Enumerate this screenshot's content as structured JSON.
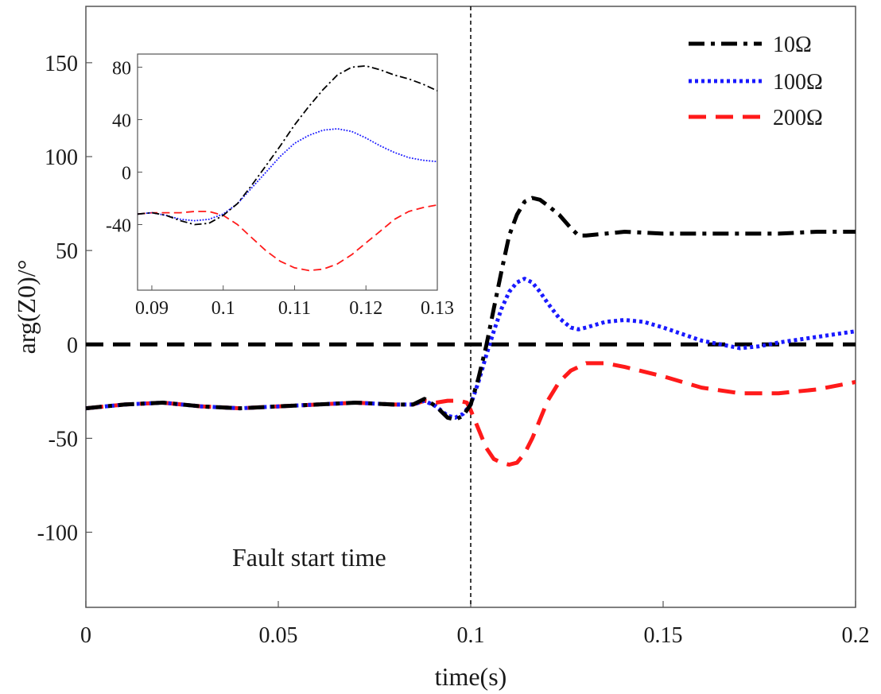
{
  "chart_data": [
    {
      "type": "line",
      "title": "",
      "xlabel": "time(s)",
      "ylabel": "arg(Z0)/°",
      "xlim": [
        0,
        0.2
      ],
      "ylim": [
        -140,
        180
      ],
      "xticks": [
        0,
        0.05,
        0.1,
        0.15,
        0.2
      ],
      "xtick_labels": [
        "0",
        "0.05",
        "0.1",
        "0.15",
        "0.2"
      ],
      "yticks": [
        -100,
        -50,
        0,
        50,
        100,
        150
      ],
      "ytick_labels": [
        "-100",
        "-50",
        "0",
        "50",
        "100",
        "150"
      ],
      "legend_position": "top-right",
      "series": [
        {
          "name": "10Ω",
          "color": "#000000",
          "dash": "dashdot",
          "x": [
            0,
            0.01,
            0.02,
            0.03,
            0.04,
            0.05,
            0.06,
            0.07,
            0.08,
            0.085,
            0.088,
            0.091,
            0.094,
            0.096,
            0.098,
            0.1,
            0.102,
            0.104,
            0.106,
            0.108,
            0.11,
            0.112,
            0.114,
            0.116,
            0.118,
            0.12,
            0.123,
            0.126,
            0.128,
            0.13,
            0.135,
            0.14,
            0.15,
            0.16,
            0.17,
            0.18,
            0.19,
            0.2
          ],
          "y": [
            -34,
            -32,
            -31,
            -33,
            -34,
            -33,
            -32,
            -31,
            -32,
            -32,
            -29,
            -33,
            -39,
            -40,
            -38,
            -32,
            -18,
            -1,
            19,
            39,
            58,
            69,
            76,
            78,
            77,
            74,
            69,
            62,
            58,
            58,
            59,
            60,
            59,
            59,
            59,
            59,
            60,
            60
          ]
        },
        {
          "name": "100Ω",
          "color": "#1a1aff",
          "dash": "dotted",
          "x": [
            0,
            0.01,
            0.02,
            0.03,
            0.04,
            0.05,
            0.06,
            0.07,
            0.08,
            0.085,
            0.088,
            0.091,
            0.094,
            0.096,
            0.098,
            0.1,
            0.102,
            0.104,
            0.106,
            0.108,
            0.11,
            0.112,
            0.114,
            0.116,
            0.118,
            0.12,
            0.123,
            0.126,
            0.128,
            0.13,
            0.135,
            0.14,
            0.145,
            0.15,
            0.16,
            0.17,
            0.175,
            0.18,
            0.19,
            0.2
          ],
          "y": [
            -34,
            -32,
            -31,
            -33,
            -34,
            -33,
            -32,
            -31,
            -32,
            -32,
            -30,
            -33,
            -38,
            -39,
            -37,
            -32,
            -20,
            -6,
            7,
            19,
            28,
            33,
            35,
            33,
            28,
            22,
            14,
            9,
            8,
            9,
            12,
            13,
            12,
            9,
            2,
            -2,
            -1,
            1,
            4,
            7
          ]
        },
        {
          "name": "200Ω",
          "color": "#ff1a1a",
          "dash": "dashed",
          "x": [
            0,
            0.01,
            0.02,
            0.03,
            0.04,
            0.05,
            0.06,
            0.07,
            0.08,
            0.085,
            0.088,
            0.091,
            0.094,
            0.097,
            0.099,
            0.1,
            0.102,
            0.104,
            0.106,
            0.108,
            0.11,
            0.112,
            0.114,
            0.116,
            0.118,
            0.12,
            0.123,
            0.126,
            0.13,
            0.135,
            0.14,
            0.15,
            0.16,
            0.17,
            0.18,
            0.19,
            0.2
          ],
          "y": [
            -34,
            -32,
            -31,
            -33,
            -34,
            -33,
            -32,
            -31,
            -32,
            -32,
            -30,
            -31,
            -30,
            -30,
            -31,
            -35,
            -45,
            -55,
            -61,
            -63,
            -64,
            -63,
            -58,
            -50,
            -40,
            -30,
            -20,
            -14,
            -10,
            -10,
            -12,
            -17,
            -23,
            -26,
            -26,
            -24,
            -20
          ]
        },
        {
          "name": "reference-zero",
          "color": "#000000",
          "dash": "dashed",
          "x": [
            0,
            0.2
          ],
          "y": [
            0,
            0
          ]
        }
      ],
      "vertical_line": {
        "x": 0.1,
        "style": "dashed",
        "color": "#000000"
      },
      "annotation": "Fault start time"
    },
    {
      "type": "line",
      "title": "inset",
      "xlim": [
        0.088,
        0.13
      ],
      "ylim": [
        -90,
        90
      ],
      "xticks": [
        0.09,
        0.1,
        0.11,
        0.12,
        0.13
      ],
      "xtick_labels": [
        "0.09",
        "0.1",
        "0.11",
        "0.12",
        "0.13"
      ],
      "yticks": [
        -40,
        0,
        40,
        80
      ],
      "ytick_labels": [
        "-40",
        "0",
        "40",
        "80"
      ],
      "series": [
        {
          "name": "10Ω",
          "color": "#000000",
          "dash": "dashdot",
          "x": [
            0.088,
            0.09,
            0.092,
            0.094,
            0.096,
            0.098,
            0.1,
            0.102,
            0.104,
            0.106,
            0.108,
            0.11,
            0.112,
            0.114,
            0.116,
            0.118,
            0.12,
            0.122,
            0.124,
            0.126,
            0.128,
            0.13
          ],
          "y": [
            -32,
            -31,
            -33,
            -37,
            -40,
            -39,
            -33,
            -24,
            -10,
            5,
            20,
            36,
            50,
            63,
            74,
            80,
            81,
            78,
            74,
            71,
            67,
            62
          ]
        },
        {
          "name": "100Ω",
          "color": "#1a1aff",
          "dash": "dotted",
          "x": [
            0.088,
            0.09,
            0.092,
            0.094,
            0.096,
            0.098,
            0.1,
            0.102,
            0.104,
            0.106,
            0.108,
            0.11,
            0.112,
            0.114,
            0.116,
            0.118,
            0.12,
            0.122,
            0.124,
            0.126,
            0.128,
            0.13
          ],
          "y": [
            -32,
            -31,
            -33,
            -36,
            -37,
            -36,
            -32,
            -24,
            -12,
            0,
            12,
            22,
            28,
            32,
            33,
            31,
            26,
            20,
            15,
            11,
            9,
            8
          ]
        },
        {
          "name": "200Ω",
          "color": "#ff1a1a",
          "dash": "dashed",
          "x": [
            0.088,
            0.09,
            0.092,
            0.094,
            0.096,
            0.098,
            0.1,
            0.102,
            0.104,
            0.106,
            0.108,
            0.11,
            0.112,
            0.114,
            0.116,
            0.118,
            0.12,
            0.122,
            0.124,
            0.126,
            0.128,
            0.13
          ],
          "y": [
            -32,
            -31,
            -31,
            -31,
            -30,
            -30,
            -33,
            -40,
            -50,
            -60,
            -68,
            -73,
            -75,
            -74,
            -70,
            -63,
            -54,
            -45,
            -36,
            -30,
            -27,
            -25
          ]
        }
      ]
    }
  ]
}
